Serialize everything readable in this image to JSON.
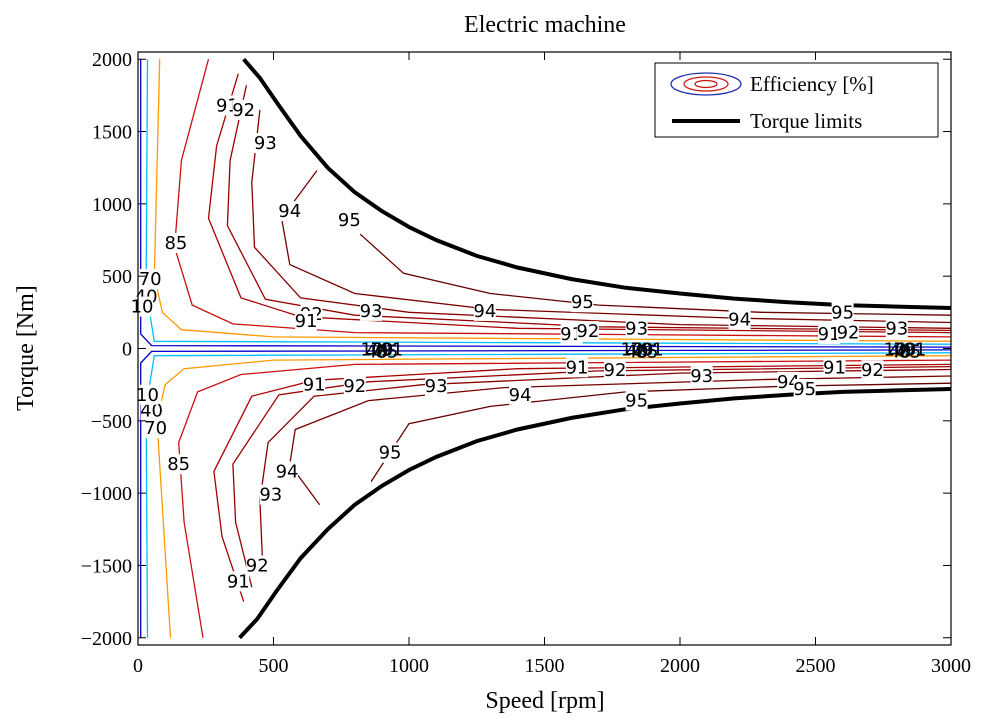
{
  "chart_data": {
    "type": "contour",
    "title": "Electric machine",
    "xlabel": "Speed [rpm]",
    "ylabel": "Torque [Nm]",
    "xlim": [
      0,
      3000
    ],
    "ylim": [
      -2050,
      2050
    ],
    "xticks": [
      0,
      500,
      1000,
      1500,
      2000,
      2500,
      3000
    ],
    "yticks": [
      -2000,
      -1500,
      -1000,
      -500,
      0,
      500,
      1000,
      1500,
      2000
    ],
    "grid": false,
    "legend": {
      "placement": "top-right",
      "entries": [
        {
          "label": "Efficiency [%]",
          "kind": "contour-icon"
        },
        {
          "label": "Torque limits",
          "kind": "thick-line",
          "color": "#000000"
        }
      ]
    },
    "torque_limit": {
      "name": "Torque limits",
      "color": "#000000",
      "upper": [
        [
          390,
          2000
        ],
        [
          450,
          1870
        ],
        [
          520,
          1680
        ],
        [
          600,
          1470
        ],
        [
          700,
          1250
        ],
        [
          800,
          1080
        ],
        [
          900,
          950
        ],
        [
          1000,
          840
        ],
        [
          1100,
          750
        ],
        [
          1250,
          640
        ],
        [
          1400,
          560
        ],
        [
          1600,
          480
        ],
        [
          1800,
          420
        ],
        [
          2000,
          380
        ],
        [
          2200,
          345
        ],
        [
          2400,
          320
        ],
        [
          2600,
          300
        ],
        [
          2800,
          290
        ],
        [
          3000,
          280
        ]
      ],
      "lower": [
        [
          375,
          -2000
        ],
        [
          440,
          -1870
        ],
        [
          510,
          -1680
        ],
        [
          600,
          -1450
        ],
        [
          700,
          -1250
        ],
        [
          800,
          -1080
        ],
        [
          900,
          -950
        ],
        [
          1000,
          -840
        ],
        [
          1100,
          -750
        ],
        [
          1250,
          -640
        ],
        [
          1400,
          -560
        ],
        [
          1600,
          -480
        ],
        [
          1800,
          -420
        ],
        [
          2000,
          -380
        ],
        [
          2200,
          -345
        ],
        [
          2400,
          -320
        ],
        [
          2600,
          -300
        ],
        [
          2800,
          -290
        ],
        [
          3000,
          -280
        ]
      ]
    },
    "efficiency_contours": [
      {
        "level": 10,
        "color": "#0000cc",
        "upper": [
          [
            10,
            2000
          ],
          [
            10,
            100
          ],
          [
            50,
            20
          ],
          [
            3000,
            10
          ]
        ],
        "lower": [
          [
            10,
            -2000
          ],
          [
            10,
            -100
          ],
          [
            50,
            -20
          ],
          [
            3000,
            -10
          ]
        ]
      },
      {
        "level": 40,
        "color": "#00bfff",
        "upper": [
          [
            35,
            2000
          ],
          [
            30,
            400
          ],
          [
            60,
            50
          ],
          [
            3000,
            30
          ]
        ],
        "lower": [
          [
            35,
            -2000
          ],
          [
            30,
            -400
          ],
          [
            60,
            -50
          ],
          [
            3000,
            -30
          ]
        ]
      },
      {
        "level": 70,
        "color": "#ff9900",
        "upper": [
          [
            80,
            2000
          ],
          [
            60,
            500
          ],
          [
            90,
            250
          ],
          [
            160,
            130
          ],
          [
            500,
            80
          ],
          [
            3000,
            50
          ]
        ],
        "lower": [
          [
            120,
            -2000
          ],
          [
            70,
            -500
          ],
          [
            100,
            -250
          ],
          [
            170,
            -140
          ],
          [
            500,
            -80
          ],
          [
            3000,
            -50
          ]
        ]
      },
      {
        "level": 85,
        "color": "#cc1010",
        "upper": [
          [
            260,
            2000
          ],
          [
            160,
            1300
          ],
          [
            135,
            700
          ],
          [
            200,
            300
          ],
          [
            350,
            170
          ],
          [
            800,
            110
          ],
          [
            3000,
            80
          ]
        ],
        "lower": [
          [
            240,
            -2000
          ],
          [
            170,
            -1200
          ],
          [
            150,
            -650
          ],
          [
            220,
            -300
          ],
          [
            380,
            -180
          ],
          [
            800,
            -110
          ],
          [
            3000,
            -80
          ]
        ]
      },
      {
        "level": 91,
        "color": "#aa0000",
        "upper": [
          [
            370,
            1900
          ],
          [
            290,
            1400
          ],
          [
            260,
            900
          ],
          [
            380,
            350
          ],
          [
            600,
            220
          ],
          [
            1400,
            140
          ],
          [
            3000,
            110
          ]
        ],
        "lower": [
          [
            390,
            -1750
          ],
          [
            310,
            -1300
          ],
          [
            280,
            -850
          ],
          [
            420,
            -330
          ],
          [
            650,
            -220
          ],
          [
            1400,
            -140
          ],
          [
            3000,
            -110
          ]
        ]
      },
      {
        "level": 92,
        "color": "#990000",
        "upper": [
          [
            400,
            1820
          ],
          [
            340,
            1300
          ],
          [
            330,
            850
          ],
          [
            470,
            340
          ],
          [
            800,
            230
          ],
          [
            1700,
            150
          ],
          [
            3000,
            125
          ]
        ],
        "lower": [
          [
            420,
            -1650
          ],
          [
            360,
            -1200
          ],
          [
            350,
            -800
          ],
          [
            520,
            -320
          ],
          [
            850,
            -230
          ],
          [
            1700,
            -155
          ],
          [
            3000,
            -125
          ]
        ]
      },
      {
        "level": 93,
        "color": "#880000",
        "upper": [
          [
            450,
            1650
          ],
          [
            420,
            1150
          ],
          [
            430,
            700
          ],
          [
            600,
            350
          ],
          [
            1000,
            250
          ],
          [
            2000,
            165
          ],
          [
            3000,
            140
          ]
        ],
        "lower": [
          [
            460,
            -1500
          ],
          [
            450,
            -1050
          ],
          [
            480,
            -650
          ],
          [
            650,
            -330
          ],
          [
            1050,
            -250
          ],
          [
            2000,
            -170
          ],
          [
            3000,
            -145
          ]
        ]
      },
      {
        "level": 94,
        "color": "#770000",
        "upper": [
          [
            660,
            1230
          ],
          [
            530,
            900
          ],
          [
            560,
            580
          ],
          [
            800,
            380
          ],
          [
            1300,
            270
          ],
          [
            2200,
            210
          ],
          [
            3000,
            180
          ]
        ],
        "lower": [
          [
            670,
            -1080
          ],
          [
            560,
            -800
          ],
          [
            580,
            -560
          ],
          [
            850,
            -360
          ],
          [
            1350,
            -270
          ],
          [
            2300,
            -215
          ],
          [
            3000,
            -190
          ]
        ]
      },
      {
        "level": 95,
        "color": "#660000",
        "upper": [
          [
            820,
            790
          ],
          [
            980,
            520
          ],
          [
            1300,
            380
          ],
          [
            1700,
            300
          ],
          [
            2300,
            250
          ],
          [
            3000,
            230
          ]
        ],
        "lower": [
          [
            860,
            -920
          ],
          [
            1000,
            -520
          ],
          [
            1300,
            -400
          ],
          [
            1800,
            -300
          ],
          [
            2400,
            -260
          ],
          [
            3000,
            -240
          ]
        ]
      }
    ],
    "contour_labels": [
      {
        "text": "91",
        "x": 330,
        "y": 1680
      },
      {
        "text": "92",
        "x": 390,
        "y": 1650
      },
      {
        "text": "93",
        "x": 470,
        "y": 1420
      },
      {
        "text": "94",
        "x": 560,
        "y": 950
      },
      {
        "text": "95",
        "x": 780,
        "y": 890
      },
      {
        "text": "85",
        "x": 140,
        "y": 730
      },
      {
        "text": "70",
        "x": 45,
        "y": 480
      },
      {
        "text": "40",
        "x": 30,
        "y": 360
      },
      {
        "text": "10",
        "x": 15,
        "y": 290
      },
      {
        "text": "92",
        "x": 640,
        "y": 240
      },
      {
        "text": "91",
        "x": 620,
        "y": 190
      },
      {
        "text": "93",
        "x": 860,
        "y": 260
      },
      {
        "text": "94",
        "x": 1280,
        "y": 260
      },
      {
        "text": "95",
        "x": 1640,
        "y": 320
      },
      {
        "text": "91",
        "x": 1600,
        "y": 100
      },
      {
        "text": "92",
        "x": 1660,
        "y": 120
      },
      {
        "text": "93",
        "x": 1840,
        "y": 140
      },
      {
        "text": "94",
        "x": 2220,
        "y": 200
      },
      {
        "text": "95",
        "x": 2600,
        "y": 250
      },
      {
        "text": "91",
        "x": 2550,
        "y": 100
      },
      {
        "text": "92",
        "x": 2620,
        "y": 110
      },
      {
        "text": "93",
        "x": 2800,
        "y": 140
      },
      {
        "text": "91",
        "x": 650,
        "y": -250
      },
      {
        "text": "92",
        "x": 800,
        "y": -260
      },
      {
        "text": "93",
        "x": 1100,
        "y": -260
      },
      {
        "text": "94",
        "x": 1410,
        "y": -320
      },
      {
        "text": "95",
        "x": 1840,
        "y": -360
      },
      {
        "text": "91",
        "x": 1620,
        "y": -130
      },
      {
        "text": "92",
        "x": 1760,
        "y": -150
      },
      {
        "text": "93",
        "x": 2080,
        "y": -190
      },
      {
        "text": "94",
        "x": 2400,
        "y": -230
      },
      {
        "text": "95",
        "x": 2460,
        "y": -280
      },
      {
        "text": "91",
        "x": 2570,
        "y": -130
      },
      {
        "text": "92",
        "x": 2710,
        "y": -150
      },
      {
        "text": "85",
        "x": 150,
        "y": -800
      },
      {
        "text": "70",
        "x": 65,
        "y": -550
      },
      {
        "text": "40",
        "x": 50,
        "y": -430
      },
      {
        "text": "10",
        "x": 35,
        "y": -320
      },
      {
        "text": "94",
        "x": 550,
        "y": -850
      },
      {
        "text": "93",
        "x": 490,
        "y": -1010
      },
      {
        "text": "92",
        "x": 440,
        "y": -1500
      },
      {
        "text": "91",
        "x": 370,
        "y": -1610
      },
      {
        "text": "95",
        "x": 930,
        "y": -720
      }
    ],
    "label_clusters": [
      {
        "x": 900,
        "y": 0
      },
      {
        "x": 1860,
        "y": 0
      },
      {
        "x": 2830,
        "y": 0
      }
    ]
  }
}
